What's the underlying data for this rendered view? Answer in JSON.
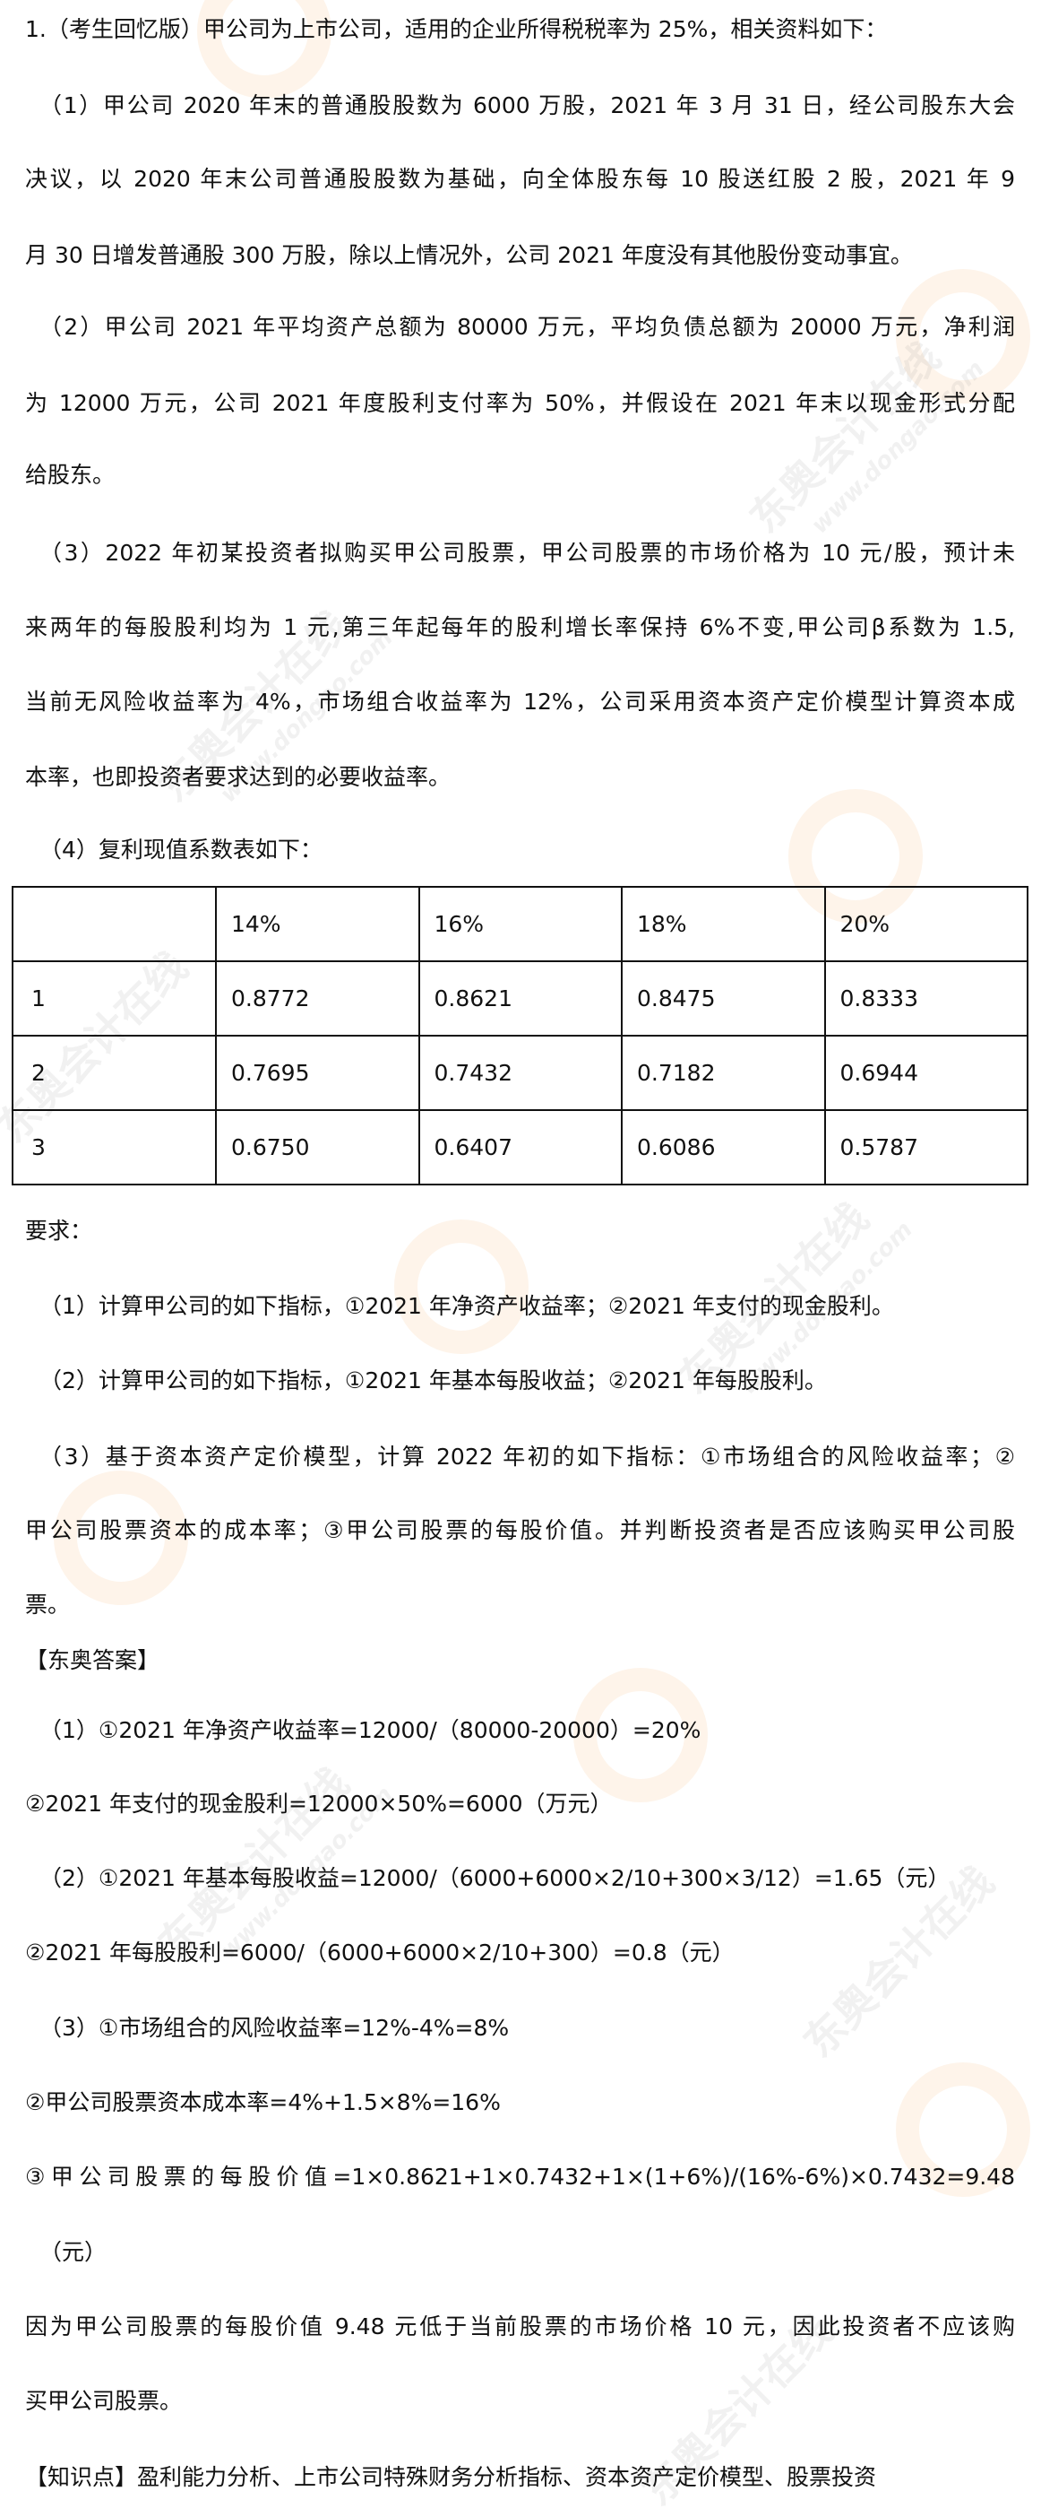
{
  "watermark": {
    "brand": "东奥会计在线",
    "url": "www.dongao.com",
    "color": "#F7AA5A"
  },
  "question": {
    "title": "1.（考生回忆版）甲公司为上市公司，适用的企业所得税税率为 25%，相关资料如下：",
    "p1": [
      "（1）甲公司 2020 年末的普通股股数为 6000 万股，2021 年 3 月 31 日，经公司股东大会",
      "决议，以 2020 年末公司普通股股数为基础，向全体股东每 10 股送红股 2 股，2021 年 9",
      "月 30 日增发普通股 300 万股，除以上情况外，公司 2021 年度没有其他股份变动事宜。"
    ],
    "p2": [
      "（2）甲公司 2021 年平均资产总额为 80000 万元，平均负债总额为 20000 万元，净利润",
      "为 12000 万元，公司 2021 年度股利支付率为 50%，并假设在 2021 年末以现金形式分配",
      "给股东。"
    ],
    "p3": [
      "（3）2022 年初某投资者拟购买甲公司股票，甲公司股票的市场价格为 10 元/股，预计未",
      "来两年的每股股利均为 1 元,第三年起每年的股利增长率保持 6%不变,甲公司β系数为 1.5,",
      "当前无风险收益率为 4%，市场组合收益率为 12%，公司采用资本资产定价模型计算资本成",
      "本率，也即投资者要求达到的必要收益率。"
    ],
    "p4": "（4）复利现值系数表如下：",
    "table": {
      "header": [
        "",
        "14%",
        "16%",
        "18%",
        "20%"
      ],
      "rows": [
        [
          "1",
          "0.8772",
          "0.8621",
          "0.8475",
          "0.8333"
        ],
        [
          "2",
          "0.7695",
          "0.7432",
          "0.7182",
          "0.6944"
        ],
        [
          "3",
          "0.6750",
          "0.6407",
          "0.6086",
          "0.5787"
        ]
      ]
    }
  },
  "requirements": {
    "heading": "要求：",
    "r1": "（1）计算甲公司的如下指标，①2021 年净资产收益率；②2021 年支付的现金股利。",
    "r2": "（2）计算甲公司的如下指标，①2021 年基本每股收益；②2021 年每股股利。",
    "r3": [
      "（3）基于资本资产定价模型，计算 2022 年初的如下指标：①市场组合的风险收益率；②",
      "甲公司股票资本的成本率；③甲公司股票的每股价值。并判断投资者是否应该购买甲公司股",
      "票。"
    ]
  },
  "answer": {
    "heading": "【东奥答案】",
    "a1_1": "（1）①2021 年净资产收益率=12000/（80000-20000）=20%",
    "a1_2": "②2021 年支付的现金股利=12000×50%=6000（万元）",
    "a2_1": "（2）①2021 年基本每股收益=12000/（6000+6000×2/10+300×3/12）=1.65（元）",
    "a2_2": "②2021 年每股股利=6000/（6000+6000×2/10+300）=0.8（元）",
    "a3_1": "（3）①市场组合的风险收益率=12%-4%=8%",
    "a3_2": "②甲公司股票资本成本率=4%+1.5×8%=16%",
    "a3_3": [
      "③甲公司股票的每股价值=1×0.8621+1×0.7432+1×(1+6%)/(16%-6%)×0.7432=9.48",
      "（元）"
    ],
    "conclusion": [
      "因为甲公司股票的每股价值 9.48 元低于当前股票的市场价格 10 元，因此投资者不应该购",
      "买甲公司股票。"
    ],
    "knowledge": "【知识点】盈利能力分析、上市公司特殊财务分析指标、资本资产定价模型、股票投资"
  }
}
